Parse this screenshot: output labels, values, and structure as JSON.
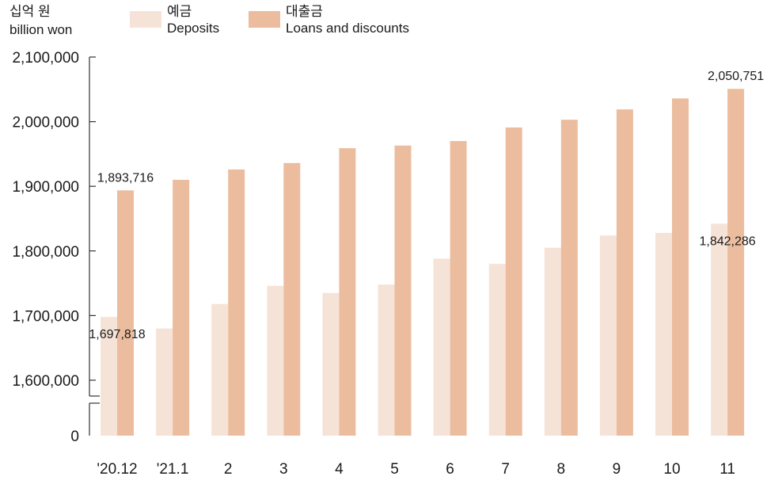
{
  "chart_data": {
    "type": "bar",
    "unit_ko": "십억 원",
    "unit_en": "billion won",
    "categories": [
      "'20.12",
      "'21.1",
      "2",
      "3",
      "4",
      "5",
      "6",
      "7",
      "8",
      "9",
      "10",
      "11"
    ],
    "series": [
      {
        "name": "Deposits",
        "name_ko": "예금",
        "values": [
          1697818,
          1680000,
          1718000,
          1746000,
          1735000,
          1748000,
          1788000,
          1780000,
          1805000,
          1824000,
          1828000,
          1842286
        ],
        "color": "#f6e3d7"
      },
      {
        "name": "Loans and discounts",
        "name_ko": "대출금",
        "values": [
          1893716,
          1910000,
          1926000,
          1936000,
          1959000,
          1963000,
          1970000,
          1991000,
          2003000,
          2019000,
          2036000,
          2050751
        ],
        "color": "#ebbd9e"
      }
    ],
    "data_labels": [
      {
        "series": 1,
        "index": 0,
        "text": "1,893,716"
      },
      {
        "series": 0,
        "index": 0,
        "text": "1,697,818"
      },
      {
        "series": 1,
        "index": 11,
        "text": "2,050,751"
      },
      {
        "series": 0,
        "index": 11,
        "text": "1,842,286"
      }
    ],
    "yaxis": {
      "ticks": [
        1600000,
        1700000,
        1800000,
        1900000,
        2000000,
        2100000
      ],
      "tick_labels": [
        "1,600,000",
        "1,700,000",
        "1,800,000",
        "1,900,000",
        "2,000,000",
        "2,100,000"
      ],
      "broken_axis": true,
      "zero_label": "0",
      "ylim": [
        1600000,
        2100000
      ]
    },
    "legend_placement": "top",
    "grid": false
  }
}
